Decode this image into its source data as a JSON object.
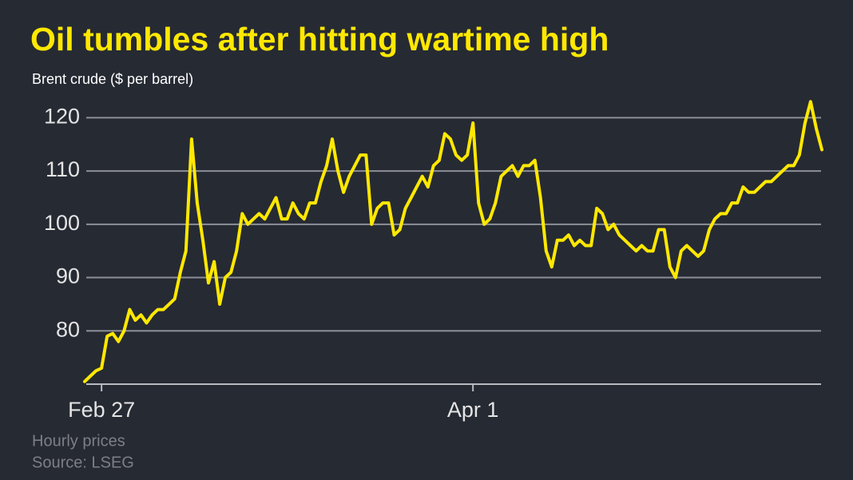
{
  "chart_data": {
    "type": "line",
    "title": "Oil tumbles after hitting wartime high",
    "subtitle": "Brent crude ($ per barrel)",
    "notes": [
      "Hourly prices",
      "Source: LSEG"
    ],
    "color": "#ffe800",
    "grid": true,
    "ylim": [
      70,
      125
    ],
    "yticks": [
      80,
      90,
      100,
      110,
      120
    ],
    "categories": [
      null,
      null,
      null,
      "Feb 27",
      null,
      null,
      null,
      null,
      null,
      null,
      null,
      null,
      null,
      null,
      null,
      null,
      null,
      null,
      null,
      null,
      null,
      null,
      null,
      null,
      null,
      null,
      null,
      null,
      null,
      null,
      null,
      null,
      null,
      null,
      null,
      null,
      null,
      null,
      null,
      null,
      null,
      null,
      null,
      null,
      null,
      null,
      null,
      null,
      null,
      null,
      null,
      null,
      null,
      null,
      null,
      null,
      null,
      null,
      null,
      null,
      null,
      null,
      null,
      null,
      null,
      null,
      null,
      null,
      null,
      "Apr 1",
      null,
      null,
      null,
      null,
      null,
      null,
      null,
      null,
      null,
      null,
      null,
      null,
      null,
      null,
      null,
      null,
      null,
      null,
      null,
      null,
      null,
      null,
      null,
      null,
      null,
      null,
      null,
      null,
      null,
      null,
      null,
      null,
      null,
      null,
      null,
      null,
      null,
      null,
      null,
      null,
      null,
      null,
      null,
      null,
      null,
      null,
      null,
      null,
      null,
      null,
      null,
      null,
      null,
      null,
      null,
      null,
      null,
      null,
      null,
      null,
      null,
      null
    ],
    "series": [
      {
        "name": "Brent crude",
        "values": [
          70.5,
          71.5,
          72.5,
          73,
          79,
          79.5,
          78,
          80,
          84,
          82,
          83,
          81.5,
          83,
          84,
          84,
          85,
          86,
          91,
          95,
          116,
          104,
          97,
          89,
          93,
          85,
          90,
          91,
          95,
          102,
          100,
          101,
          102,
          101,
          103,
          105,
          101,
          101,
          104,
          102,
          101,
          104,
          104,
          108,
          111,
          116,
          110,
          106,
          109,
          111,
          113,
          113,
          100,
          103,
          104,
          104,
          98,
          99,
          103,
          105,
          107,
          109,
          107,
          111,
          112,
          117,
          116,
          113,
          112,
          113,
          119,
          104,
          100,
          101,
          104,
          109,
          110,
          111,
          109,
          111,
          111,
          112,
          105,
          95,
          92,
          97,
          97,
          98,
          96,
          97,
          96,
          96,
          103,
          102,
          99,
          100,
          98,
          97,
          96,
          95,
          96,
          95,
          95,
          99,
          99,
          92,
          90,
          95,
          96,
          95,
          94,
          95,
          99,
          101,
          102,
          102,
          104,
          104,
          107,
          106,
          106,
          107,
          108,
          108,
          109,
          110,
          111,
          111,
          113,
          119,
          123,
          118,
          114
        ]
      }
    ]
  }
}
